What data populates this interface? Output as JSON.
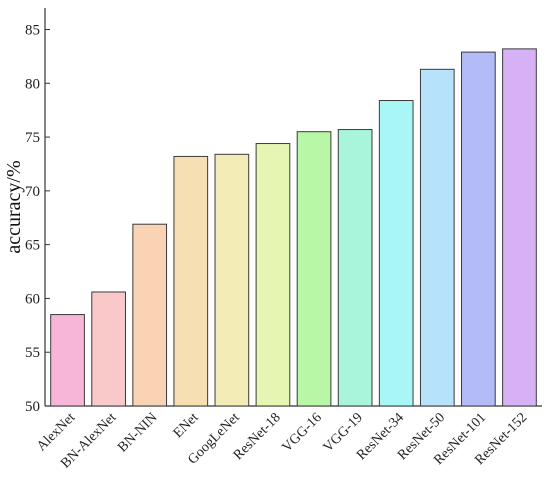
{
  "chart_data": {
    "type": "bar",
    "title": "",
    "xlabel": "",
    "ylabel": "accuracy/%",
    "ylim": [
      50,
      87
    ],
    "yticks": [
      50,
      55,
      60,
      65,
      70,
      75,
      80,
      85
    ],
    "grid": false,
    "categories": [
      "AlexNet",
      "BN-AlexNet",
      "BN-NIN",
      "ENet",
      "GoogLeNet",
      "ResNet-18",
      "VGG-16",
      "VGG-19",
      "ResNet-34",
      "ResNet-50",
      "ResNet-101",
      "ResNet-152"
    ],
    "values": [
      58.5,
      60.6,
      66.9,
      73.2,
      73.4,
      74.4,
      75.5,
      75.7,
      78.4,
      81.3,
      82.9,
      83.2
    ],
    "colors": [
      "#f7b6d8",
      "#f9c8c8",
      "#f9d3b3",
      "#f6dfb3",
      "#f3ecb6",
      "#e6f5b2",
      "#b7f7a6",
      "#a9f5dc",
      "#a9f6f6",
      "#b7e2fb",
      "#b4bcf7",
      "#d7b1f5"
    ]
  }
}
